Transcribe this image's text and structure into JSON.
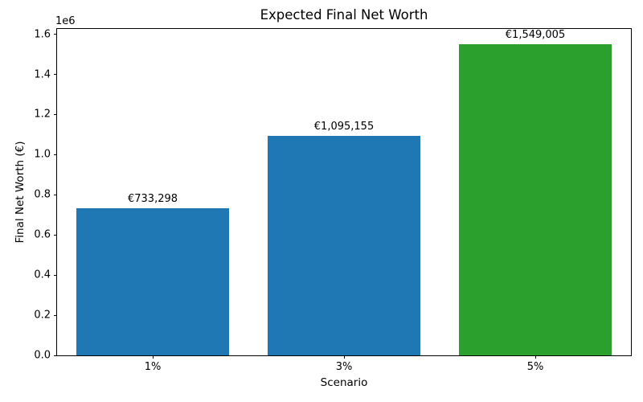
{
  "chart_data": {
    "type": "bar",
    "title": "Expected Final Net Worth",
    "xlabel": "Scenario",
    "ylabel": "Final Net Worth (€)",
    "categories": [
      "1%",
      "3%",
      "5%"
    ],
    "values": [
      733298,
      1095155,
      1549005
    ],
    "bar_labels": [
      "€733,298",
      "€1,095,155",
      "€1,549,005"
    ],
    "bar_colors": [
      "#1f77b4",
      "#1f77b4",
      "#2ca02c"
    ],
    "bar_width_fraction": 0.8,
    "ylim": [
      0,
      1626455
    ],
    "yticks": [
      0,
      200000,
      400000,
      600000,
      800000,
      1000000,
      1200000,
      1400000,
      1600000
    ],
    "ytick_labels": [
      "0.0",
      "0.2",
      "0.4",
      "0.6",
      "0.8",
      "1.0",
      "1.2",
      "1.4",
      "1.6"
    ],
    "y_offset_label": "1e6",
    "grid": false,
    "legend": "none"
  }
}
